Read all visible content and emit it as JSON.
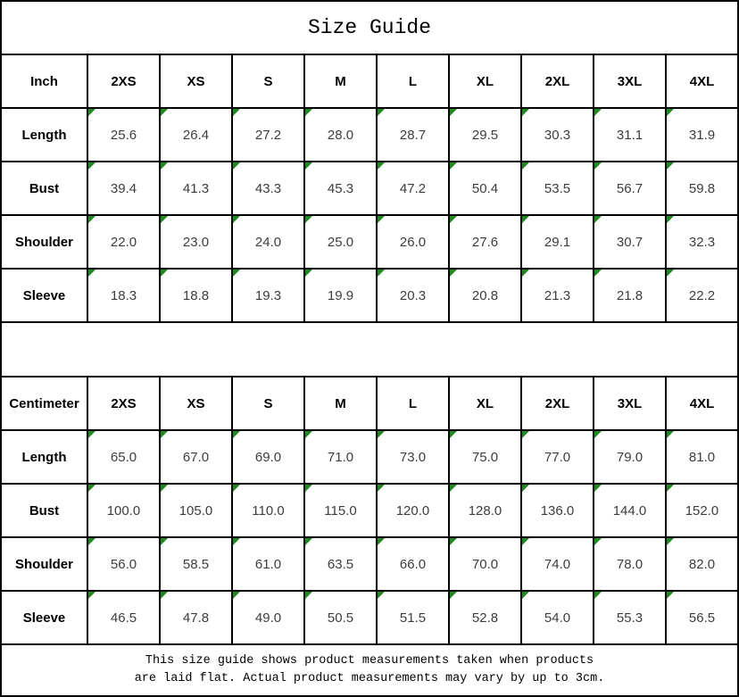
{
  "title": "Size Guide",
  "sizes": [
    "2XS",
    "XS",
    "S",
    "M",
    "L",
    "XL",
    "2XL",
    "3XL",
    "4XL"
  ],
  "tables": [
    {
      "unit_label": "Inch",
      "rows": [
        {
          "label": "Length",
          "values": [
            "25.6",
            "26.4",
            "27.2",
            "28.0",
            "28.7",
            "29.5",
            "30.3",
            "31.1",
            "31.9"
          ]
        },
        {
          "label": "Bust",
          "values": [
            "39.4",
            "41.3",
            "43.3",
            "45.3",
            "47.2",
            "50.4",
            "53.5",
            "56.7",
            "59.8"
          ]
        },
        {
          "label": "Shoulder",
          "values": [
            "22.0",
            "23.0",
            "24.0",
            "25.0",
            "26.0",
            "27.6",
            "29.1",
            "30.7",
            "32.3"
          ]
        },
        {
          "label": "Sleeve",
          "values": [
            "18.3",
            "18.8",
            "19.3",
            "19.9",
            "20.3",
            "20.8",
            "21.3",
            "21.8",
            "22.2"
          ]
        }
      ]
    },
    {
      "unit_label": "Centimeter",
      "rows": [
        {
          "label": "Length",
          "values": [
            "65.0",
            "67.0",
            "69.0",
            "71.0",
            "73.0",
            "75.0",
            "77.0",
            "79.0",
            "81.0"
          ]
        },
        {
          "label": "Bust",
          "values": [
            "100.0",
            "105.0",
            "110.0",
            "115.0",
            "120.0",
            "128.0",
            "136.0",
            "144.0",
            "152.0"
          ]
        },
        {
          "label": "Shoulder",
          "values": [
            "56.0",
            "58.5",
            "61.0",
            "63.5",
            "66.0",
            "70.0",
            "74.0",
            "78.0",
            "82.0"
          ]
        },
        {
          "label": "Sleeve",
          "values": [
            "46.5",
            "47.8",
            "49.0",
            "50.5",
            "51.5",
            "52.8",
            "54.0",
            "55.3",
            "56.5"
          ]
        }
      ]
    }
  ],
  "footer": {
    "line1": "This size guide shows product measurements taken when products",
    "line2": "are laid flat. Actual product measurements may vary by up to 3cm."
  },
  "icons": {
    "cell_flag": "green-corner-triangle-icon"
  },
  "colors": {
    "grid": "#000000",
    "flag_green": "#1f8a1f",
    "value_text": "#3d3d3d",
    "label_text": "#000000",
    "background": "#ffffff"
  }
}
